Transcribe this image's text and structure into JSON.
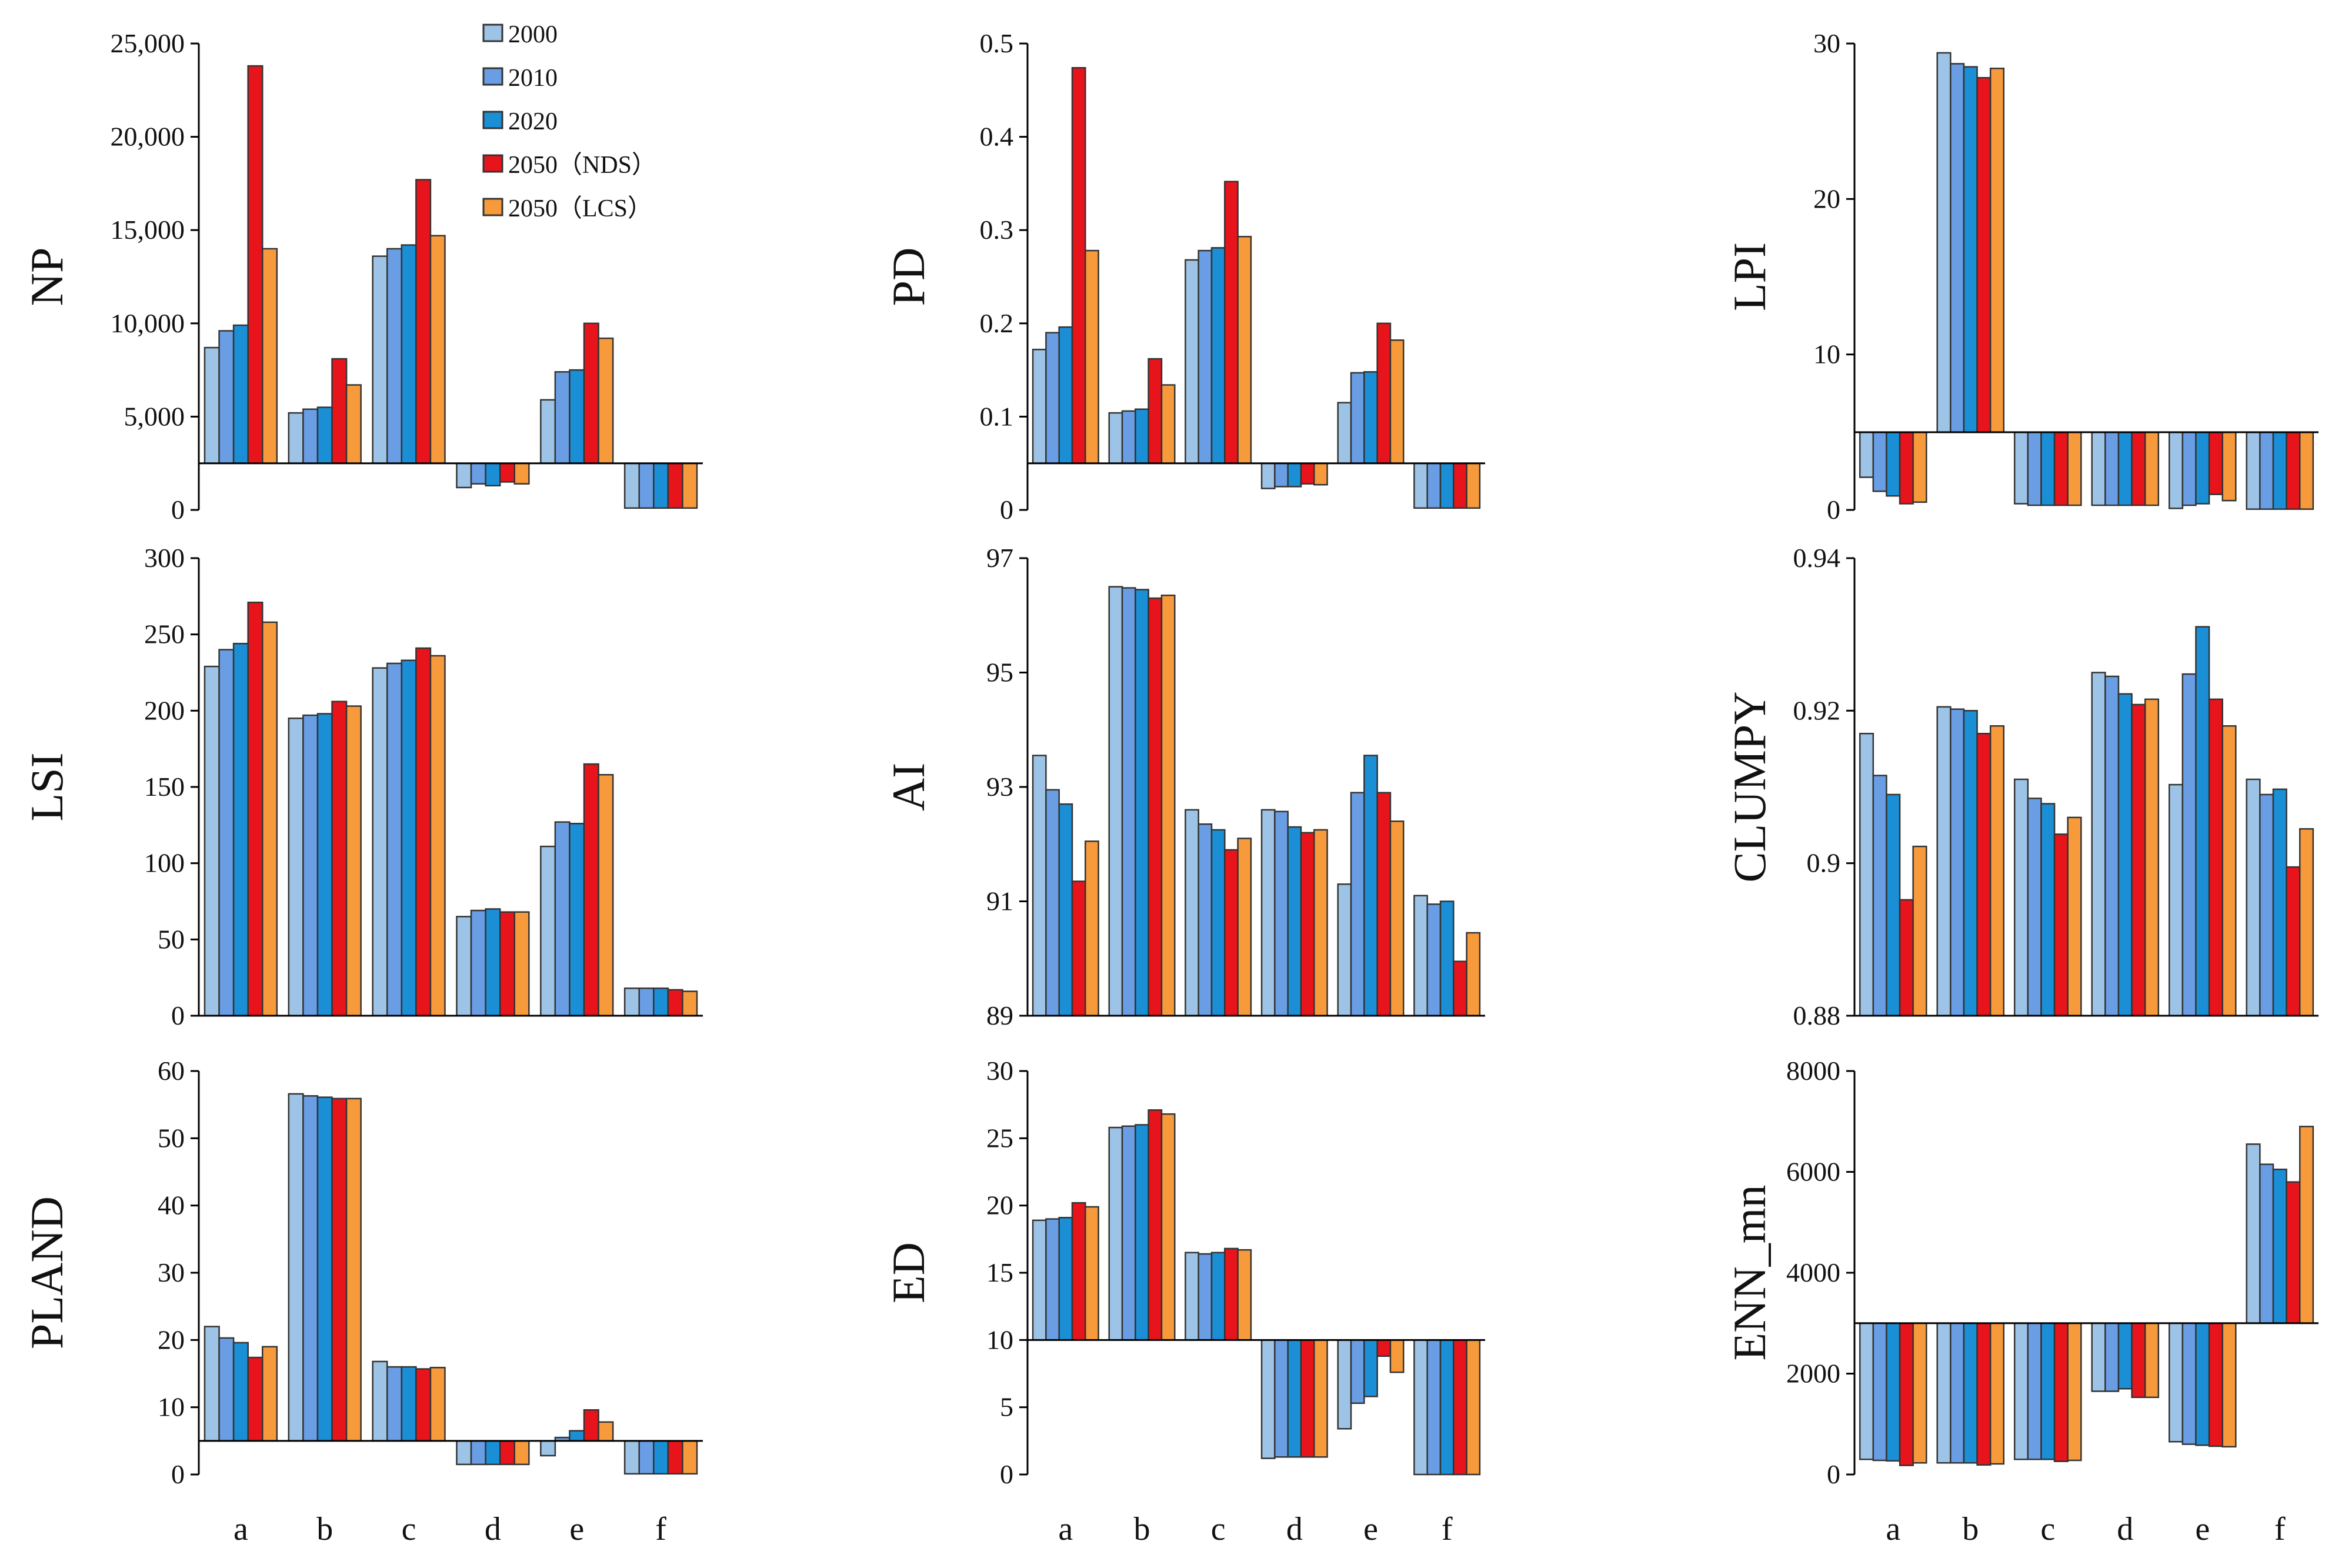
{
  "chart_data": {
    "type": "bar",
    "categories": [
      "a",
      "b",
      "c",
      "d",
      "e",
      "f"
    ],
    "legend": {
      "placement": "top (inside NP panel)",
      "entries": [
        "2000",
        "2010",
        "2020",
        "2050（NDS）",
        "2050（LCS）"
      ],
      "colors": [
        "#9dc3e6",
        "#6a9ee4",
        "#1b8fd6",
        "#e8141b",
        "#f79a3c"
      ]
    },
    "panels": [
      {
        "ylabel": "NP",
        "ylim": [
          0,
          25000
        ],
        "baseline": 2500,
        "ticks": [
          0,
          5000,
          10000,
          15000,
          20000,
          25000
        ],
        "tick_labels": [
          "0",
          "5,000",
          "10,000",
          "15,000",
          "20,000",
          "25,000"
        ],
        "series": [
          [
            8700,
            5200,
            13600,
            1200,
            5900,
            100
          ],
          [
            9600,
            5400,
            14000,
            1400,
            7400,
            100
          ],
          [
            9900,
            5500,
            14200,
            1300,
            7500,
            100
          ],
          [
            23800,
            8100,
            17700,
            1500,
            10000,
            100
          ],
          [
            14000,
            6700,
            14700,
            1400,
            9200,
            100
          ]
        ]
      },
      {
        "ylabel": "PD",
        "ylim": [
          0,
          0.5
        ],
        "baseline": 0.05,
        "ticks": [
          0,
          0.1,
          0.2,
          0.3,
          0.4,
          0.5
        ],
        "tick_labels": [
          "0",
          "0.1",
          "0.2",
          "0.3",
          "0.4",
          "0.5"
        ],
        "series": [
          [
            0.172,
            0.104,
            0.268,
            0.023,
            0.115,
            0.002
          ],
          [
            0.19,
            0.106,
            0.278,
            0.025,
            0.147,
            0.002
          ],
          [
            0.196,
            0.108,
            0.281,
            0.025,
            0.148,
            0.002
          ],
          [
            0.474,
            0.162,
            0.352,
            0.028,
            0.2,
            0.002
          ],
          [
            0.278,
            0.134,
            0.293,
            0.027,
            0.182,
            0.002
          ]
        ]
      },
      {
        "ylabel": "LPI",
        "ylim": [
          0,
          30
        ],
        "baseline": 5,
        "ticks": [
          0,
          10,
          20,
          30
        ],
        "tick_labels": [
          "0",
          "10",
          "20",
          "30"
        ],
        "series": [
          [
            2.1,
            29.4,
            0.4,
            0.3,
            0.1,
            0.05
          ],
          [
            1.2,
            28.7,
            0.3,
            0.3,
            0.3,
            0.05
          ],
          [
            0.9,
            28.5,
            0.3,
            0.3,
            0.4,
            0.05
          ],
          [
            0.4,
            27.8,
            0.3,
            0.3,
            1.0,
            0.05
          ],
          [
            0.5,
            28.4,
            0.3,
            0.3,
            0.6,
            0.05
          ]
        ]
      },
      {
        "ylabel": "LSI",
        "ylim": [
          0,
          300
        ],
        "baseline": 0,
        "ticks": [
          0,
          50,
          100,
          150,
          200,
          250,
          300
        ],
        "tick_labels": [
          "0",
          "50",
          "100",
          "150",
          "200",
          "250",
          "300"
        ],
        "series": [
          [
            229,
            195,
            228,
            65,
            111,
            18
          ],
          [
            240,
            197,
            231,
            69,
            127,
            18
          ],
          [
            244,
            198,
            233,
            70,
            126,
            18
          ],
          [
            271,
            206,
            241,
            68,
            165,
            17
          ],
          [
            258,
            203,
            236,
            68,
            158,
            16
          ]
        ]
      },
      {
        "ylabel": "AI",
        "ylim": [
          89,
          97
        ],
        "baseline": 89,
        "ticks": [
          89,
          91,
          93,
          95,
          97
        ],
        "tick_labels": [
          "89",
          "91",
          "93",
          "95",
          "97"
        ],
        "series": [
          [
            93.55,
            96.5,
            92.6,
            92.6,
            91.3,
            91.1
          ],
          [
            92.95,
            96.48,
            92.35,
            92.57,
            92.9,
            90.95
          ],
          [
            92.7,
            96.45,
            92.25,
            92.3,
            93.55,
            91.0
          ],
          [
            91.35,
            96.3,
            91.9,
            92.2,
            92.9,
            89.95
          ],
          [
            92.05,
            96.35,
            92.1,
            92.25,
            92.4,
            90.45
          ]
        ]
      },
      {
        "ylabel": "CLUMPY",
        "ylim": [
          0.88,
          0.94
        ],
        "baseline": 0.88,
        "ticks": [
          0.88,
          0.9,
          0.92,
          0.94
        ],
        "tick_labels": [
          "0.88",
          "0.9",
          "0.92",
          "0.94"
        ],
        "series": [
          [
            0.917,
            0.9205,
            0.911,
            0.925,
            0.9103,
            0.911
          ],
          [
            0.9115,
            0.9202,
            0.9085,
            0.9245,
            0.9248,
            0.909
          ],
          [
            0.909,
            0.92,
            0.9078,
            0.9222,
            0.931,
            0.9097
          ],
          [
            0.8952,
            0.917,
            0.9038,
            0.9208,
            0.9215,
            0.8995
          ],
          [
            0.9022,
            0.918,
            0.906,
            0.9215,
            0.918,
            0.9045
          ]
        ]
      },
      {
        "ylabel": "PLAND",
        "ylim": [
          0,
          60
        ],
        "baseline": 5,
        "ticks": [
          0,
          10,
          20,
          30,
          40,
          50,
          60
        ],
        "tick_labels": [
          "0",
          "10",
          "20",
          "30",
          "40",
          "50",
          "60"
        ],
        "series": [
          [
            22,
            56.6,
            16.8,
            1.5,
            2.8,
            0.1
          ],
          [
            20.3,
            56.3,
            16,
            1.5,
            5.5,
            0.1
          ],
          [
            19.6,
            56.1,
            16,
            1.5,
            6.5,
            0.1
          ],
          [
            17.4,
            55.9,
            15.7,
            1.5,
            9.6,
            0.1
          ],
          [
            19,
            55.9,
            15.9,
            1.5,
            7.8,
            0.1
          ]
        ]
      },
      {
        "ylabel": "ED",
        "ylim": [
          0,
          30
        ],
        "baseline": 10,
        "ticks": [
          0,
          5,
          10,
          15,
          20,
          25,
          30
        ],
        "tick_labels": [
          "0",
          "5",
          "10",
          "15",
          "20",
          "25",
          "30"
        ],
        "series": [
          [
            18.9,
            25.8,
            16.5,
            1.2,
            3.4,
            0
          ],
          [
            19,
            25.9,
            16.4,
            1.3,
            5.3,
            0
          ],
          [
            19.1,
            26,
            16.5,
            1.3,
            5.8,
            0
          ],
          [
            20.2,
            27.1,
            16.8,
            1.3,
            8.8,
            0
          ],
          [
            19.9,
            26.8,
            16.7,
            1.3,
            7.6,
            0
          ]
        ]
      },
      {
        "ylabel": "ENN_mn",
        "ylim": [
          0,
          8000
        ],
        "baseline": 3000,
        "ticks": [
          0,
          2000,
          4000,
          6000,
          8000
        ],
        "tick_labels": [
          "0",
          "2000",
          "4000",
          "6000",
          "8000"
        ],
        "series": [
          [
            300,
            230,
            300,
            1650,
            650,
            6550
          ],
          [
            280,
            230,
            300,
            1650,
            600,
            6150
          ],
          [
            270,
            230,
            300,
            1700,
            580,
            6050
          ],
          [
            180,
            190,
            260,
            1530,
            560,
            5800
          ],
          [
            230,
            210,
            280,
            1530,
            550,
            6900
          ]
        ]
      }
    ]
  }
}
